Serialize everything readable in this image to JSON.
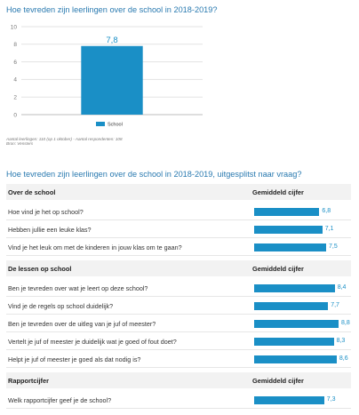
{
  "chart1": {
    "title": "Hoe tevreden zijn leerlingen over de school in 2018-2019?",
    "footnote1": "Aantal leerlingen: 110 (op 1 oktober) - Aantal respondenten: 108",
    "footnote2": "Bron: Vensters"
  },
  "chart2": {
    "title": "Hoe tevreden zijn leerlingen over de school in 2018-2019, uitgesplitst naar vraag?"
  },
  "chart_data": [
    {
      "type": "bar",
      "title": "Hoe tevreden zijn leerlingen over de school in 2018-2019?",
      "categories": [
        "School"
      ],
      "series": [
        {
          "name": "School",
          "values": [
            7.8
          ]
        }
      ],
      "value_labels": [
        "7,8"
      ],
      "ylim": [
        0,
        10
      ],
      "yticks": [
        0,
        2,
        4,
        6,
        8,
        10
      ],
      "grid": true,
      "legend": "bottom",
      "colors": {
        "bar": "#1a8fc6",
        "grid": "#e3e3e3"
      }
    },
    {
      "type": "bar",
      "orientation": "horizontal",
      "title": "Hoe tevreden zijn leerlingen over de school in 2018-2019, uitgesplitst naar vraag?",
      "xlim": [
        0,
        10
      ],
      "colors": {
        "bar": "#1a8fc6"
      },
      "sections": [
        {
          "title": "Over de school",
          "value_header": "Gemiddeld cijfer",
          "rows": [
            {
              "question": "Hoe vind je het op school?",
              "value": 6.8,
              "label": "6,8"
            },
            {
              "question": "Hebben jullie een leuke klas?",
              "value": 7.1,
              "label": "7,1"
            },
            {
              "question": "Vind je het leuk om met de kinderen in jouw klas om te gaan?",
              "value": 7.5,
              "label": "7,5"
            }
          ]
        },
        {
          "title": "De lessen op school",
          "value_header": "Gemiddeld cijfer",
          "rows": [
            {
              "question": "Ben je tevreden over wat je leert op deze school?",
              "value": 8.4,
              "label": "8,4"
            },
            {
              "question": "Vind je de regels op school duidelijk?",
              "value": 7.7,
              "label": "7,7"
            },
            {
              "question": "Ben je tevreden over de uitleg van je juf of meester?",
              "value": 8.8,
              "label": "8,8"
            },
            {
              "question": "Vertelt je juf of meester je duidelijk wat je goed of fout doet?",
              "value": 8.3,
              "label": "8,3"
            },
            {
              "question": "Helpt je juf of meester je goed als dat nodig is?",
              "value": 8.6,
              "label": "8,6"
            }
          ]
        },
        {
          "title": "Rapportcijfer",
          "value_header": "Gemiddeld cijfer",
          "rows": [
            {
              "question": "Welk rapportcijfer geef je de school?",
              "value": 7.3,
              "label": "7,3"
            }
          ]
        }
      ]
    }
  ]
}
